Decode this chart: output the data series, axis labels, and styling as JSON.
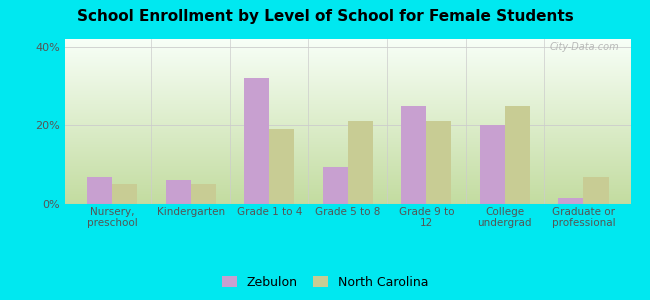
{
  "title": "School Enrollment by Level of School for Female Students",
  "categories": [
    "Nursery,\npreschool",
    "Kindergarten",
    "Grade 1 to 4",
    "Grade 5 to 8",
    "Grade 9 to\n12",
    "College\nundergrad",
    "Graduate or\nprofessional"
  ],
  "zebulon": [
    7.0,
    6.0,
    32.0,
    9.5,
    25.0,
    20.0,
    1.5
  ],
  "north_carolina": [
    5.0,
    5.0,
    19.0,
    21.0,
    21.0,
    25.0,
    7.0
  ],
  "zebulon_color": "#c8a0d0",
  "nc_color": "#c8cc94",
  "background_outer": "#00e8f0",
  "background_inner_top_left": "#e8f5e8",
  "background_inner_top_right": "#f8fff8",
  "background_inner_bottom": "#c8dca8",
  "yticks": [
    0,
    20,
    40
  ],
  "ylim": [
    0,
    42
  ],
  "legend_zebulon": "Zebulon",
  "legend_nc": "North Carolina",
  "watermark": "City-Data.com"
}
